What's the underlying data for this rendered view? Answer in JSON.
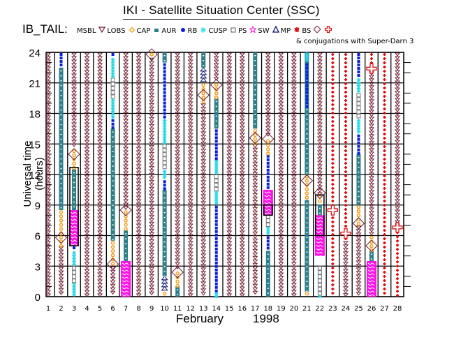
{
  "header": {
    "title": "IKI - Satellite Situation Center (SSC)",
    "mission": "IB_TAIL:",
    "note": "& conjugations with Super-Darn 3"
  },
  "legend": [
    {
      "label": "MS",
      "symbol": "none",
      "color": "#000000"
    },
    {
      "label": "BL",
      "symbol": "triangle-down",
      "color": "#6e1a2e"
    },
    {
      "label": "LOBS",
      "symbol": "sun",
      "color": "#f0a020"
    },
    {
      "label": "CAP",
      "symbol": "square",
      "color": "#2f7f8a"
    },
    {
      "label": "AUR",
      "symbol": "dot",
      "color": "#0a1fd8"
    },
    {
      "label": "RB",
      "symbol": "asterisk",
      "color": "#21d6e6"
    },
    {
      "label": "CUSP",
      "symbol": "open-square",
      "color": "#777777"
    },
    {
      "label": "PS",
      "symbol": "star",
      "color": "#ff10e8"
    },
    {
      "label": "SW",
      "symbol": "triangle-up",
      "color": "#0a1070"
    },
    {
      "label": "MP",
      "symbol": "splat",
      "color": "#e01010"
    },
    {
      "label": "BS",
      "symbol": "diamond",
      "color": "#6e1a2e"
    },
    {
      "label": "",
      "symbol": "cross",
      "color": "#e01010"
    }
  ],
  "chart_data": {
    "type": "timeline",
    "title": "IKI - Satellite Situation Center (SSC)",
    "xlabel": "February",
    "xlabel_year": "1998",
    "ylabel": "Universal time (hours)",
    "x_ticks": [
      "1",
      "2",
      "3",
      "4",
      "5",
      "6",
      "7",
      "8",
      "9",
      "10",
      "11",
      "12",
      "13",
      "14",
      "15",
      "16",
      "17",
      "18",
      "19",
      "20",
      "21",
      "22",
      "23",
      "24",
      "25",
      "26",
      "27",
      "28"
    ],
    "y_ticks": [
      "0",
      "3",
      "6",
      "9",
      "12",
      "15",
      "18",
      "21",
      "24"
    ],
    "xlim": [
      1,
      28
    ],
    "ylim": [
      0,
      24
    ],
    "grid": true,
    "region_colors": {
      "BL": "#6e1a2e",
      "LOBS": "#f0a020",
      "CAP": "#2f7f8a",
      "AUR": "#0a1fd8",
      "RB": "#21d6e6",
      "CUSP": "#777777",
      "PS": "#ff10e8",
      "SW": "#0a1070",
      "MP": "#e01010"
    },
    "days": [
      {
        "day": 1,
        "segments": [
          {
            "region": "BL",
            "from": 0,
            "to": 24
          }
        ]
      },
      {
        "day": 2,
        "segments": [
          {
            "region": "BL",
            "from": 0,
            "to": 5
          },
          {
            "region": "LOBS",
            "from": 5,
            "to": 8.5
          },
          {
            "region": "CAP",
            "from": 8.5,
            "to": 22.5
          },
          {
            "region": "AUR",
            "from": 22.5,
            "to": 24
          }
        ]
      },
      {
        "day": 3,
        "segments": [
          {
            "region": "RB",
            "from": 0,
            "to": 1.5
          },
          {
            "region": "CUSP",
            "from": 1.5,
            "to": 3
          },
          {
            "region": "RB",
            "from": 3,
            "to": 4.5
          },
          {
            "region": "AUR",
            "from": 4.5,
            "to": 5
          },
          {
            "region": "PS",
            "from": 5,
            "to": 8.5
          },
          {
            "region": "CAP",
            "from": 8.5,
            "to": 12.5
          },
          {
            "region": "LOBS",
            "from": 12.5,
            "to": 14.5
          },
          {
            "region": "BL",
            "from": 14.5,
            "to": 24
          }
        ]
      },
      {
        "day": 4,
        "segments": [
          {
            "region": "BL",
            "from": 0,
            "to": 24
          }
        ]
      },
      {
        "day": 5,
        "segments": [
          {
            "region": "BL",
            "from": 0,
            "to": 24
          }
        ]
      },
      {
        "day": 6,
        "segments": [
          {
            "region": "BL",
            "from": 0,
            "to": 3
          },
          {
            "region": "LOBS",
            "from": 3,
            "to": 5.5
          },
          {
            "region": "CAP",
            "from": 5.5,
            "to": 16.5
          },
          {
            "region": "AUR",
            "from": 16.5,
            "to": 17.5
          },
          {
            "region": "RB",
            "from": 17.5,
            "to": 19.5
          },
          {
            "region": "CUSP",
            "from": 19.5,
            "to": 21.5
          },
          {
            "region": "RB",
            "from": 21.5,
            "to": 23.5
          },
          {
            "region": "AUR",
            "from": 23.5,
            "to": 24
          }
        ]
      },
      {
        "day": 7,
        "segments": [
          {
            "region": "PS",
            "from": 0,
            "to": 3.5
          },
          {
            "region": "CAP",
            "from": 3.5,
            "to": 6.5
          },
          {
            "region": "LOBS",
            "from": 6.5,
            "to": 8.5
          },
          {
            "region": "BL",
            "from": 8.5,
            "to": 24
          }
        ]
      },
      {
        "day": 8,
        "segments": [
          {
            "region": "BL",
            "from": 0,
            "to": 24
          }
        ]
      },
      {
        "day": 9,
        "segments": [
          {
            "region": "BL",
            "from": 0,
            "to": 23.5
          },
          {
            "region": "LOBS",
            "from": 23.5,
            "to": 24
          }
        ]
      },
      {
        "day": 10,
        "segments": [
          {
            "region": "LOBS",
            "from": 0,
            "to": 0.5
          },
          {
            "region": "SW",
            "from": 0.5,
            "to": 2
          },
          {
            "region": "CAP",
            "from": 2,
            "to": 10.5
          },
          {
            "region": "AUR",
            "from": 10.5,
            "to": 11.5
          },
          {
            "region": "RB",
            "from": 11.5,
            "to": 12.5
          },
          {
            "region": "CUSP",
            "from": 12.5,
            "to": 15
          },
          {
            "region": "RB",
            "from": 15,
            "to": 17.5
          },
          {
            "region": "AUR",
            "from": 17.5,
            "to": 23
          },
          {
            "region": "CAP",
            "from": 23,
            "to": 24
          }
        ]
      },
      {
        "day": 11,
        "segments": [
          {
            "region": "CAP",
            "from": 0,
            "to": 1
          },
          {
            "region": "LOBS",
            "from": 1,
            "to": 2.5
          },
          {
            "region": "BL",
            "from": 2.5,
            "to": 24
          }
        ]
      },
      {
        "day": 12,
        "segments": [
          {
            "region": "BL",
            "from": 0,
            "to": 24
          }
        ]
      },
      {
        "day": 13,
        "segments": [
          {
            "region": "LOBS",
            "from": 19,
            "to": 21
          },
          {
            "region": "SW",
            "from": 21,
            "to": 22.5
          },
          {
            "region": "CAP",
            "from": 22.5,
            "to": 24
          },
          {
            "region": "BL",
            "from": 0,
            "to": 19
          }
        ]
      },
      {
        "day": 14,
        "segments": [
          {
            "region": "RB",
            "from": 0,
            "to": 0.5
          },
          {
            "region": "AUR",
            "from": 0.5,
            "to": 9
          },
          {
            "region": "RB",
            "from": 9,
            "to": 10.5
          },
          {
            "region": "CUSP",
            "from": 10.5,
            "to": 12
          },
          {
            "region": "RB",
            "from": 12,
            "to": 13.5
          },
          {
            "region": "AUR",
            "from": 13.5,
            "to": 16.5
          },
          {
            "region": "CAP",
            "from": 16.5,
            "to": 19.5
          },
          {
            "region": "LOBS",
            "from": 19.5,
            "to": 21
          },
          {
            "region": "BL",
            "from": 21,
            "to": 24
          }
        ]
      },
      {
        "day": 15,
        "segments": [
          {
            "region": "BL",
            "from": 0,
            "to": 24
          }
        ]
      },
      {
        "day": 16,
        "segments": [
          {
            "region": "BL",
            "from": 0,
            "to": 24
          }
        ]
      },
      {
        "day": 17,
        "segments": [
          {
            "region": "BL",
            "from": 0,
            "to": 15
          },
          {
            "region": "LOBS",
            "from": 15,
            "to": 16.5
          },
          {
            "region": "CAP",
            "from": 16.5,
            "to": 24
          }
        ]
      },
      {
        "day": 18,
        "segments": [
          {
            "region": "CAP",
            "from": 0,
            "to": 4.5
          },
          {
            "region": "AUR",
            "from": 4.5,
            "to": 6
          },
          {
            "region": "RB",
            "from": 6,
            "to": 7
          },
          {
            "region": "CUSP",
            "from": 7,
            "to": 8.5
          },
          {
            "region": "RB",
            "from": 8.5,
            "to": 9.5
          },
          {
            "region": "PS",
            "from": 9.5,
            "to": 8
          },
          {
            "region": "PS",
            "from": 8,
            "to": 10.5
          },
          {
            "region": "AUR",
            "from": 10.5,
            "to": 14
          },
          {
            "region": "LOBS",
            "from": 14,
            "to": 15.5
          },
          {
            "region": "BL",
            "from": 15.5,
            "to": 24
          }
        ]
      },
      {
        "day": 19,
        "segments": [
          {
            "region": "BL",
            "from": 0,
            "to": 24
          }
        ]
      },
      {
        "day": 20,
        "segments": [
          {
            "region": "BL",
            "from": 0,
            "to": 24
          }
        ]
      },
      {
        "day": 21,
        "segments": [
          {
            "region": "LOBS",
            "from": 0,
            "to": 0.5
          },
          {
            "region": "CAP",
            "from": 0.5,
            "to": 9.5
          },
          {
            "region": "LOBS",
            "from": 9.5,
            "to": 12
          },
          {
            "region": "CAP",
            "from": 12,
            "to": 24
          },
          {
            "region": "AUR",
            "from": 18.5,
            "to": 23
          },
          {
            "region": "RB",
            "from": 23,
            "to": 24
          }
        ]
      },
      {
        "day": 22,
        "segments": [
          {
            "region": "RB",
            "from": 0,
            "to": 3
          },
          {
            "region": "CUSP",
            "from": 3,
            "to": 0
          },
          {
            "region": "PS",
            "from": 4,
            "to": 8
          },
          {
            "region": "CAP",
            "from": 8,
            "to": 9
          },
          {
            "region": "LOBS",
            "from": 9,
            "to": 10
          },
          {
            "region": "BL",
            "from": 10,
            "to": 24
          }
        ]
      },
      {
        "day": 23,
        "segments": [
          {
            "region": "MP",
            "from": 0,
            "to": 24
          }
        ]
      },
      {
        "day": 24,
        "segments": [
          {
            "region": "BL",
            "from": 0,
            "to": 5.5
          },
          {
            "region": "MP",
            "from": 5.5,
            "to": 24
          }
        ]
      },
      {
        "day": 25,
        "segments": [
          {
            "region": "BL",
            "from": 0,
            "to": 7
          },
          {
            "region": "LOBS",
            "from": 7,
            "to": 9
          },
          {
            "region": "CAP",
            "from": 9,
            "to": 14
          },
          {
            "region": "AUR",
            "from": 14,
            "to": 16
          },
          {
            "region": "RB",
            "from": 16,
            "to": 17.5
          },
          {
            "region": "CUSP",
            "from": 17.5,
            "to": 20
          },
          {
            "region": "RB",
            "from": 20,
            "to": 21.5
          },
          {
            "region": "AUR",
            "from": 21.5,
            "to": 24
          }
        ]
      },
      {
        "day": 26,
        "segments": [
          {
            "region": "PS",
            "from": 0,
            "to": 3.5
          },
          {
            "region": "CAP",
            "from": 3.5,
            "to": 4.5
          },
          {
            "region": "LOBS",
            "from": 4.5,
            "to": 6
          },
          {
            "region": "BL",
            "from": 6,
            "to": 22.5
          },
          {
            "region": "MP",
            "from": 22.5,
            "to": 24
          }
        ]
      },
      {
        "day": 27,
        "segments": [
          {
            "region": "MP",
            "from": 0,
            "to": 24
          }
        ]
      },
      {
        "day": 28,
        "segments": [
          {
            "region": "MP",
            "from": 0,
            "to": 6.5
          },
          {
            "region": "BL",
            "from": 6.5,
            "to": 24
          }
        ]
      }
    ],
    "bow_shock_crossings": [
      {
        "day": 2,
        "hour": 5.8
      },
      {
        "day": 3,
        "hour": 14
      },
      {
        "day": 6,
        "hour": 3.2
      },
      {
        "day": 7,
        "hour": 8.5
      },
      {
        "day": 9,
        "hour": 23.8
      },
      {
        "day": 11,
        "hour": 2.4
      },
      {
        "day": 13,
        "hour": 19.8
      },
      {
        "day": 14,
        "hour": 20.8
      },
      {
        "day": 17,
        "hour": 15.6
      },
      {
        "day": 18,
        "hour": 15.5
      },
      {
        "day": 21,
        "hour": 11.4
      },
      {
        "day": 22,
        "hour": 10.2
      },
      {
        "day": 25,
        "hour": 7.2
      },
      {
        "day": 26,
        "hour": 5
      }
    ],
    "superdarn_conjugations": [
      {
        "day": 23,
        "hour": 8.5
      },
      {
        "day": 24,
        "hour": 6.2
      },
      {
        "day": 26,
        "hour": 22.4
      },
      {
        "day": 28,
        "hour": 6.8
      }
    ],
    "boxes": [
      {
        "day": 3,
        "from": 5,
        "to": 12.7
      },
      {
        "day": 18,
        "from": 8,
        "to": 9
      },
      {
        "day": 22,
        "from": 6,
        "to": 10
      }
    ]
  }
}
